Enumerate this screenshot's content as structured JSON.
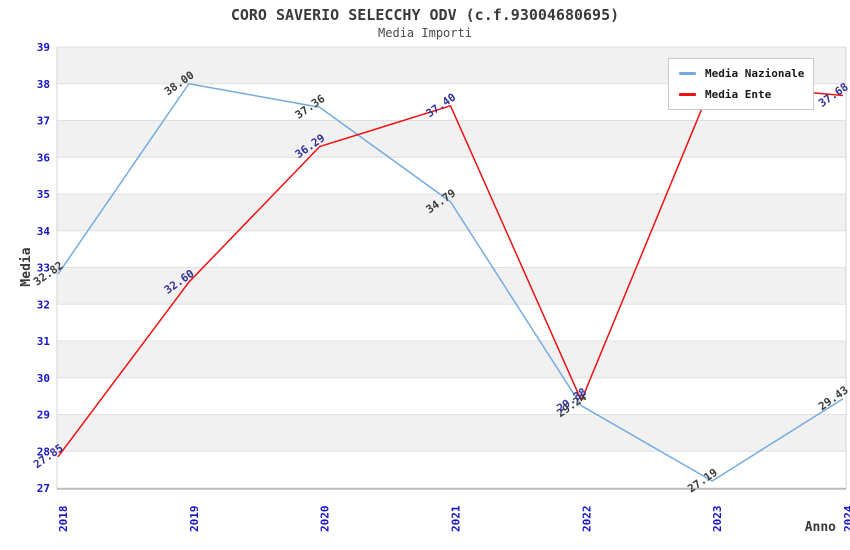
{
  "title": "CORO SAVERIO SELECCHY ODV (c.f.93004680695)",
  "subtitle": "Media Importi",
  "axes": {
    "y_label": "Media",
    "x_label": "Anno"
  },
  "legend": {
    "position": "top-right",
    "items": [
      {
        "label": "Media Nazionale",
        "color": "#74ace0"
      },
      {
        "label": "Media Ente",
        "color": "#ee1111"
      }
    ]
  },
  "colors": {
    "tick_label": "#1414c8",
    "nazionale_point_label": "#3c3c3c",
    "ente_point_label": "#32329b",
    "stripe": "#f1f1f1",
    "gridline": "#e0e0e0",
    "axis_line": "#9b9b9b",
    "side_border": "#d4d4d4",
    "title_text": "#3a3a3a"
  },
  "chart_data": {
    "type": "line",
    "title": "CORO SAVERIO SELECCHY ODV (c.f.93004680695)",
    "subtitle": "Media Importi",
    "xlabel": "Anno",
    "ylabel": "Media",
    "x": [
      2018,
      2019,
      2020,
      2021,
      2022,
      2023,
      2024
    ],
    "ylim": [
      27,
      39
    ],
    "yticks": [
      27,
      28,
      29,
      30,
      31,
      32,
      33,
      34,
      35,
      36,
      37,
      38,
      39
    ],
    "grid": "horizontal-stripes",
    "legend_position": "top-right",
    "series": [
      {
        "name": "Media Nazionale",
        "color": "#74ace0",
        "label_color": "#3c3c3c",
        "values": [
          32.82,
          38.0,
          37.36,
          34.79,
          29.24,
          27.19,
          29.43
        ],
        "point_labels": [
          "32.82",
          "38.00",
          "37.36",
          "34.79",
          "29.24",
          "27.19",
          "29.43"
        ]
      },
      {
        "name": "Media Ente",
        "color": "#ee1111",
        "label_color": "#32329b",
        "values": [
          27.85,
          32.6,
          36.29,
          37.4,
          29.38,
          38.0,
          37.68
        ],
        "point_labels": [
          "27.85",
          "32.60",
          "36.29",
          "37.40",
          "29.38",
          "",
          "37.68"
        ]
      }
    ]
  }
}
